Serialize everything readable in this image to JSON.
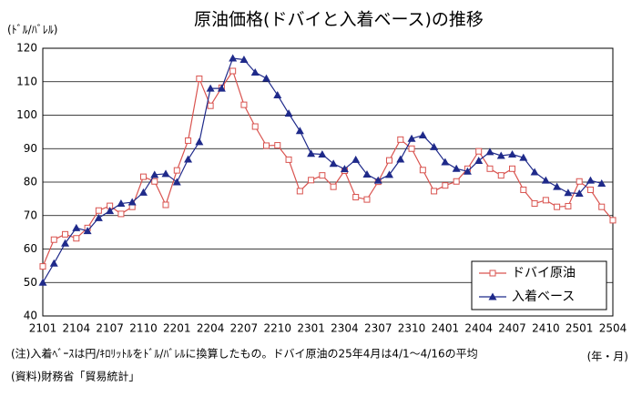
{
  "chart_data": {
    "type": "line",
    "title": "原油価格(ドバイと入着ベース)の推移",
    "y_label": "(ﾄﾞﾙ/ﾊﾞﾚﾙ)",
    "x_label": "(年・月)",
    "notes": [
      "(注)入着ﾍﾞｰｽは円/ｷﾛﾘｯﾄﾙをﾄﾞﾙ/ﾊﾞﾚﾙに換算したもの。ドバイ原油の25年4月は4/1～4/16の平均",
      "(資料)財務省「貿易統計」"
    ],
    "categories": [
      "2101",
      null,
      null,
      "2104",
      null,
      null,
      "2107",
      null,
      null,
      "2110",
      null,
      null,
      "2201",
      null,
      null,
      "2204",
      null,
      null,
      "2207",
      null,
      null,
      "2210",
      null,
      null,
      "2301",
      null,
      null,
      "2304",
      null,
      null,
      "2307",
      null,
      null,
      "2310",
      null,
      null,
      "2401",
      null,
      null,
      "2404",
      null,
      null,
      "2407",
      null,
      null,
      "2410",
      null,
      null,
      "2501",
      null,
      null,
      "2504"
    ],
    "series": [
      {
        "name": "ドバイ原油",
        "color": "#d9534f",
        "marker": "square",
        "values": [
          54.8,
          62.8,
          64.4,
          63.2,
          66.3,
          71.5,
          72.9,
          70.5,
          72.6,
          81.6,
          80.2,
          73.2,
          83.5,
          92.4,
          110.9,
          102.8,
          108.2,
          113.2,
          103.1,
          96.6,
          90.9,
          91.0,
          86.7,
          77.3,
          80.6,
          82.0,
          78.6,
          83.4,
          75.5,
          74.8,
          80.1,
          86.5,
          92.7,
          90.0,
          83.6,
          77.3,
          79.0,
          80.2,
          84.0,
          89.2,
          84.0,
          82.0,
          84.0,
          77.7,
          73.6,
          74.6,
          72.6,
          72.8,
          80.2,
          77.7,
          72.6,
          68.6
        ]
      },
      {
        "name": "入着ベース",
        "color": "#1f2a8a",
        "marker": "triangle",
        "values": [
          50.0,
          55.7,
          61.7,
          66.3,
          65.4,
          69.3,
          71.4,
          73.6,
          74.0,
          76.9,
          82.2,
          82.5,
          80.0,
          86.8,
          92.0,
          108.0,
          108.0,
          117.0,
          116.6,
          112.8,
          111.0,
          106.0,
          100.5,
          95.3,
          88.5,
          88.3,
          85.5,
          83.9,
          86.7,
          82.3,
          80.5,
          82.2,
          86.8,
          93.0,
          94.0,
          90.5,
          86.0,
          84.0,
          83.2,
          86.4,
          89.0,
          87.9,
          88.3,
          87.3,
          83.0,
          80.5,
          78.6,
          76.8,
          76.6,
          80.5,
          79.6,
          null
        ]
      }
    ],
    "ylim": [
      40,
      120
    ],
    "yticks": [
      40,
      50,
      60,
      70,
      80,
      90,
      100,
      110,
      120
    ],
    "grid": true,
    "legend": "lower right"
  }
}
